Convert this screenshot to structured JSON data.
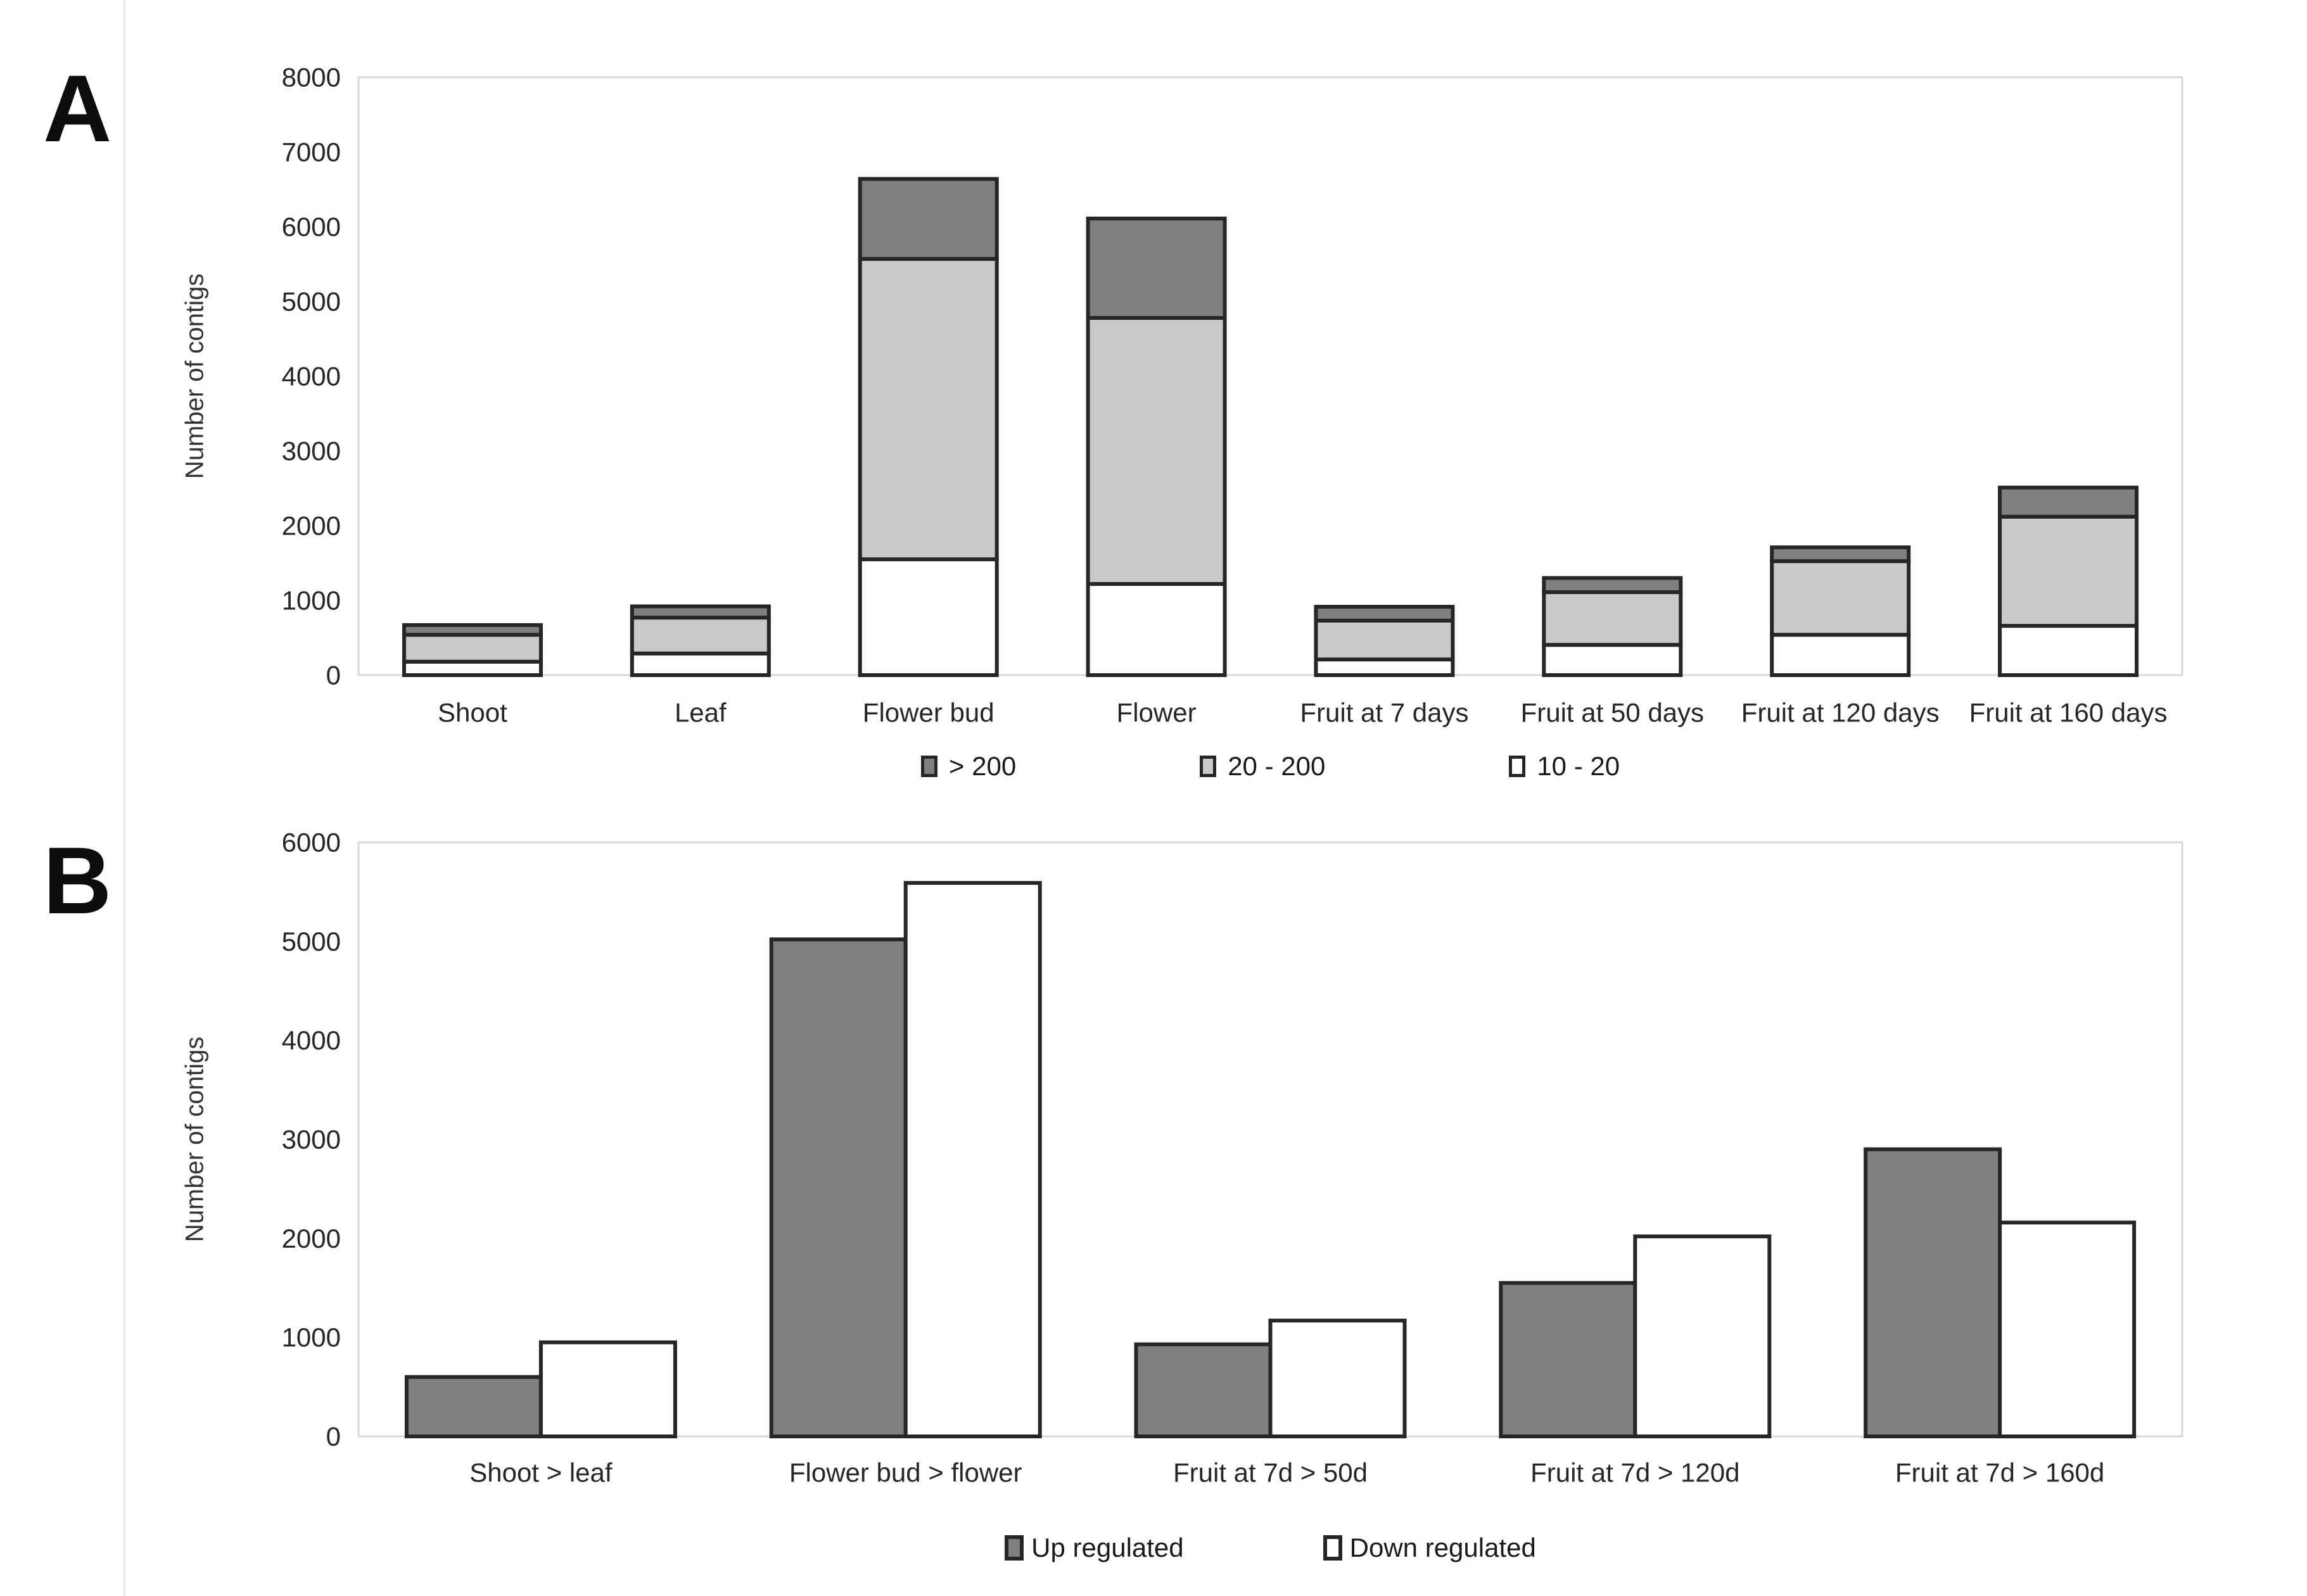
{
  "panels": [
    {
      "letter": "A",
      "y_axis_title": "Number of contigs"
    },
    {
      "letter": "B",
      "y_axis_title": "Number of contigs"
    }
  ],
  "colors": {
    "dark_gray": "#7f7f7f",
    "light_gray": "#c9c9c9",
    "white": "#ffffff",
    "bar_border": "#262626",
    "plot_border": "#d9d9d9",
    "text": "#262626"
  },
  "chart_data": [
    {
      "type": "bar",
      "stacked": true,
      "title": "",
      "xlabel": "",
      "ylabel": "Number of contigs",
      "categories": [
        "Shoot",
        "Leaf",
        "Flower bud",
        "Flower",
        "Fruit at 7 days",
        "Fruit at 50 days",
        "Fruit at 120 days",
        "Fruit at 160 days"
      ],
      "series": [
        {
          "name": "10 - 20",
          "color": "#ffffff",
          "values": [
            180,
            290,
            1550,
            1220,
            210,
            405,
            540,
            660
          ]
        },
        {
          "name": "20 - 200",
          "color": "#c9c9c9",
          "values": [
            360,
            480,
            4020,
            3560,
            520,
            705,
            985,
            1460
          ]
        },
        {
          "name": "> 200",
          "color": "#7f7f7f",
          "values": [
            130,
            150,
            1070,
            1330,
            185,
            190,
            185,
            390
          ]
        }
      ],
      "totals": [
        670,
        920,
        6640,
        6110,
        915,
        1300,
        1710,
        2510
      ],
      "legend_order": [
        "> 200",
        "20 - 200",
        "10 - 20"
      ],
      "ylim": [
        0,
        8000
      ],
      "yticks": [
        0,
        1000,
        2000,
        3000,
        4000,
        5000,
        6000,
        7000,
        8000
      ],
      "grid": false,
      "legend_position": "bottom"
    },
    {
      "type": "bar",
      "stacked": false,
      "title": "",
      "xlabel": "",
      "ylabel": "Number of contigs",
      "categories": [
        "Shoot > leaf",
        "Flower bud > flower",
        "Fruit at 7d > 50d",
        "Fruit at 7d > 120d",
        "Fruit at 7d > 160d"
      ],
      "series": [
        {
          "name": "Up regulated",
          "color": "#7f7f7f",
          "values": [
            600,
            5020,
            930,
            1550,
            2900
          ]
        },
        {
          "name": "Down regulated",
          "color": "#ffffff",
          "values": [
            950,
            5590,
            1170,
            2020,
            2160
          ]
        }
      ],
      "ylim": [
        0,
        6000
      ],
      "yticks": [
        0,
        1000,
        2000,
        3000,
        4000,
        5000,
        6000
      ],
      "grid": false,
      "legend_position": "bottom"
    }
  ]
}
